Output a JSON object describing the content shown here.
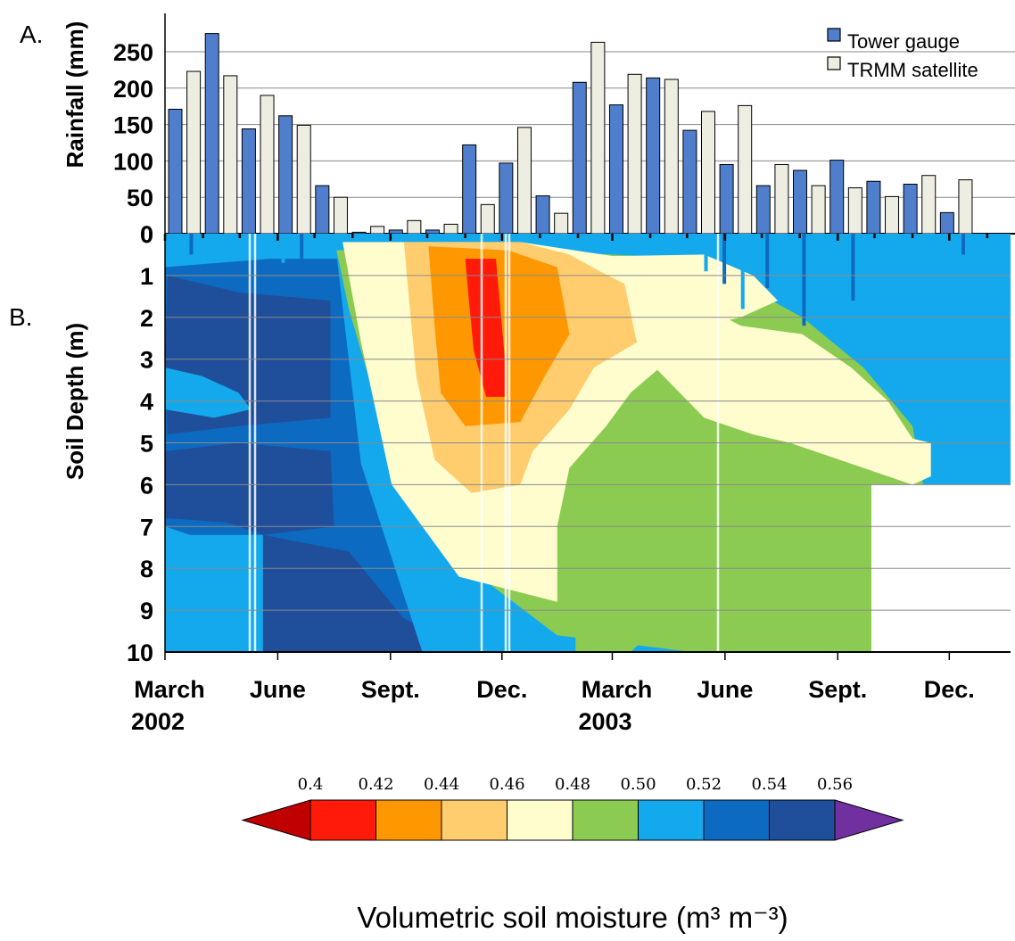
{
  "chart_data": [
    {
      "type": "bar",
      "panel_label": "A.",
      "ylabel": "Rainfall (mm)",
      "ylim": [
        0,
        280
      ],
      "yticks": [
        0,
        50,
        100,
        150,
        200,
        250
      ],
      "grid": true,
      "legend_position": "top-right",
      "categories": [
        "2002-03",
        "2002-04",
        "2002-05",
        "2002-06",
        "2002-07",
        "2002-08",
        "2002-09",
        "2002-10",
        "2002-11",
        "2002-12",
        "2003-01",
        "2003-02",
        "2003-03",
        "2003-04",
        "2003-05",
        "2003-06",
        "2003-07",
        "2003-08",
        "2003-09",
        "2003-10",
        "2003-11",
        "2003-12",
        "2004-01"
      ],
      "series": [
        {
          "name": "Tower gauge",
          "color": "#4F7FCC",
          "values": [
            171,
            275,
            144,
            162,
            66,
            2,
            5,
            5,
            122,
            97,
            52,
            208,
            177,
            214,
            142,
            95,
            66,
            87,
            101,
            72,
            68,
            29,
            0
          ]
        },
        {
          "name": "TRMM satellite",
          "color": "#EEEDE2",
          "values": [
            223,
            217,
            190,
            149,
            50,
            10,
            18,
            13,
            40,
            146,
            28,
            263,
            219,
            212,
            168,
            176,
            95,
            66,
            63,
            51,
            80,
            74,
            0
          ]
        }
      ]
    },
    {
      "type": "heatmap",
      "panel_label": "B.",
      "ylabel": "Soil Depth (m)",
      "ylim": [
        10,
        0
      ],
      "yticks": [
        0,
        1,
        2,
        3,
        4,
        5,
        6,
        7,
        8,
        9,
        10
      ],
      "x_range": [
        "2002-03-01",
        "2004-01-20"
      ],
      "x_tick_labels": [
        {
          "line1": "March",
          "line2": "2002",
          "date": "2002-03-01"
        },
        {
          "line1": "June",
          "line2": "",
          "date": "2002-06-01"
        },
        {
          "line1": "Sept.",
          "line2": "",
          "date": "2002-09-01"
        },
        {
          "line1": "Dec.",
          "line2": "",
          "date": "2002-12-01"
        },
        {
          "line1": "March",
          "line2": "2003",
          "date": "2003-03-01"
        },
        {
          "line1": "June",
          "line2": "",
          "date": "2003-06-01"
        },
        {
          "line1": "Sept.",
          "line2": "",
          "date": "2003-09-01"
        },
        {
          "line1": "Dec.",
          "line2": "",
          "date": "2003-12-01"
        }
      ],
      "colorbar": {
        "title": "Volumetric soil moisture (m³ m⁻³)",
        "tick_labels": [
          "0.4",
          "0.42",
          "0.44",
          "0.46",
          "0.48",
          "0.50",
          "0.52",
          "0.54",
          "0.56"
        ],
        "low_extend_color": "#C00000",
        "high_extend_color": "#7030A0",
        "colors": [
          "#FF1A0A",
          "#FF9800",
          "#FFCC6E",
          "#FFFDCE",
          "#8CCB52",
          "#14A9EC",
          "#0C6BC0",
          "#1F4E9B"
        ]
      }
    }
  ]
}
